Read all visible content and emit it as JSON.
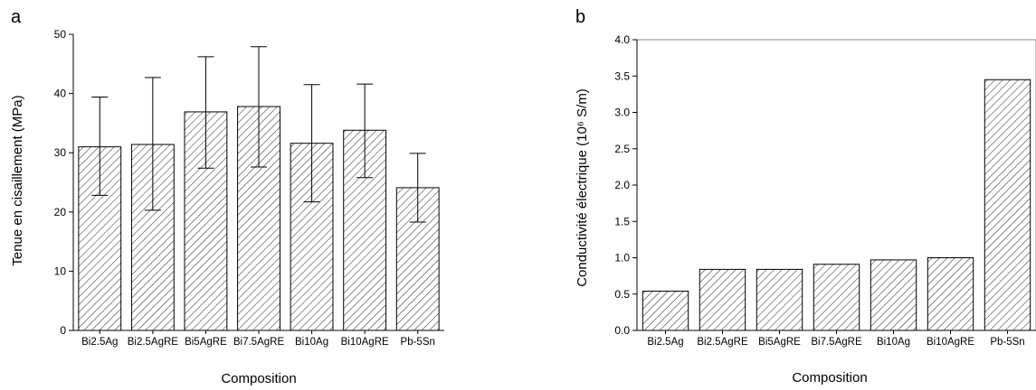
{
  "chart_data": [
    {
      "panel": "a",
      "type": "bar",
      "xlabel": "Composition",
      "ylabel": "Tenue en cisaillement (MPa)",
      "ylim": [
        0,
        50
      ],
      "yticks": [
        0,
        10,
        20,
        30,
        40,
        50
      ],
      "categories": [
        "Bi2.5Ag",
        "Bi2.5AgRE",
        "Bi5AgRE",
        "Bi7.5AgRE",
        "Bi10Ag",
        "Bi10AgRE",
        "Pb-5Sn"
      ],
      "values": [
        31.0,
        31.4,
        36.9,
        37.8,
        31.6,
        33.8,
        24.1
      ],
      "error_low": [
        22.8,
        20.3,
        27.4,
        27.6,
        21.7,
        25.8,
        18.3
      ],
      "error_high": [
        39.4,
        42.7,
        46.2,
        47.9,
        41.5,
        41.6,
        29.9
      ],
      "fill": "diagonal-hatch",
      "grid": false
    },
    {
      "panel": "b",
      "type": "bar",
      "xlabel": "Composition",
      "ylabel": "Conductivité électrique (10⁶ S/m)",
      "ylim": [
        0,
        4.0
      ],
      "yticks": [
        "0.0",
        "0.5",
        "1.0",
        "1.5",
        "2.0",
        "2.5",
        "3.0",
        "3.5",
        "4.0"
      ],
      "categories": [
        "Bi2.5Ag",
        "Bi2.5AgRE",
        "Bi5AgRE",
        "Bi7.5AgRE",
        "Bi10Ag",
        "Bi10AgRE",
        "Pb-5Sn"
      ],
      "values": [
        0.54,
        0.84,
        0.84,
        0.91,
        0.97,
        1.0,
        3.45
      ],
      "fill": "diagonal-hatch",
      "grid": false
    }
  ]
}
